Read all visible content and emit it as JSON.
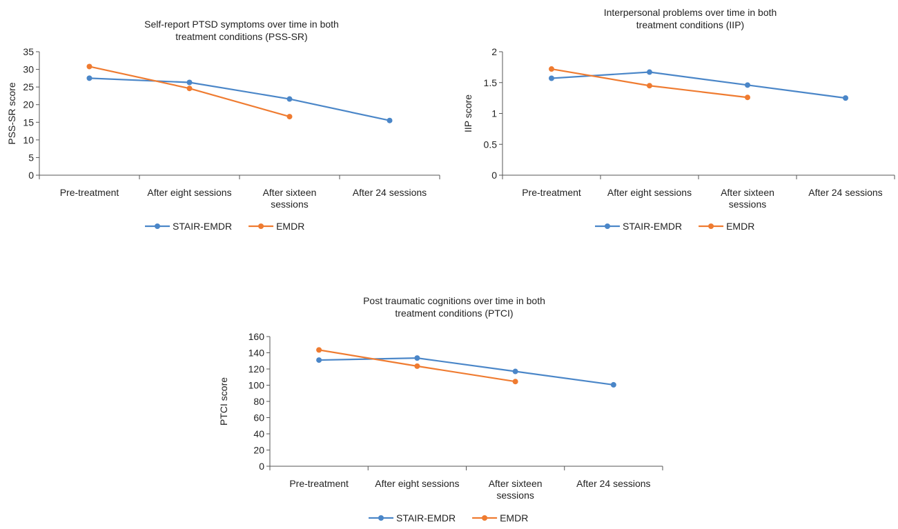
{
  "colors": {
    "STAIR-EMDR": "#4a86c8",
    "EMDR": "#ef7b30",
    "axis": "#555555"
  },
  "chart_data": [
    {
      "type": "line",
      "title": [
        "Self-report PTSD symptoms over time in both",
        "treatment conditions (PSS-SR)"
      ],
      "ylabel": "PSS-SR score",
      "xlabel": "",
      "categories": [
        [
          "Pre-treatment"
        ],
        [
          "After eight sessions"
        ],
        [
          "After sixteen",
          "sessions"
        ],
        [
          "After 24 sessions"
        ]
      ],
      "ylim": [
        0,
        35
      ],
      "yticks": [
        0,
        5,
        10,
        15,
        20,
        25,
        30,
        35
      ],
      "grid": false,
      "legend": "bottom",
      "series": [
        {
          "name": "STAIR-EMDR",
          "values": [
            27.5,
            26.3,
            21.6,
            15.5
          ]
        },
        {
          "name": "EMDR",
          "values": [
            30.8,
            24.6,
            16.6,
            null
          ]
        }
      ]
    },
    {
      "type": "line",
      "title": [
        "Interpersonal problems over time in both",
        "treatment conditions (IIP)"
      ],
      "ylabel": "IIP score",
      "xlabel": "",
      "categories": [
        [
          "Pre-treatment"
        ],
        [
          "After eight sessions"
        ],
        [
          "After sixteen",
          "sessions"
        ],
        [
          "After 24 sessions"
        ]
      ],
      "ylim": [
        0,
        2
      ],
      "yticks": [
        0,
        0.5,
        1,
        1.5,
        2
      ],
      "grid": false,
      "legend": "bottom",
      "series": [
        {
          "name": "STAIR-EMDR",
          "values": [
            1.57,
            1.67,
            1.46,
            1.25
          ]
        },
        {
          "name": "EMDR",
          "values": [
            1.72,
            1.45,
            1.26,
            null
          ]
        }
      ]
    },
    {
      "type": "line",
      "title": [
        "Post traumatic cognitions over time in both",
        "treatment conditions (PTCI)"
      ],
      "ylabel": "PTCI score",
      "xlabel": "",
      "categories": [
        [
          "Pre-treatment"
        ],
        [
          "After eight sessions"
        ],
        [
          "After sixteen",
          "sessions"
        ],
        [
          "After 24 sessions"
        ]
      ],
      "ylim": [
        0,
        160
      ],
      "yticks": [
        0,
        20,
        40,
        60,
        80,
        100,
        120,
        140,
        160
      ],
      "grid": false,
      "legend": "bottom",
      "series": [
        {
          "name": "STAIR-EMDR",
          "values": [
            131,
            133.5,
            117,
            100.5
          ]
        },
        {
          "name": "EMDR",
          "values": [
            143.5,
            123.5,
            104.5,
            null
          ]
        }
      ]
    }
  ]
}
